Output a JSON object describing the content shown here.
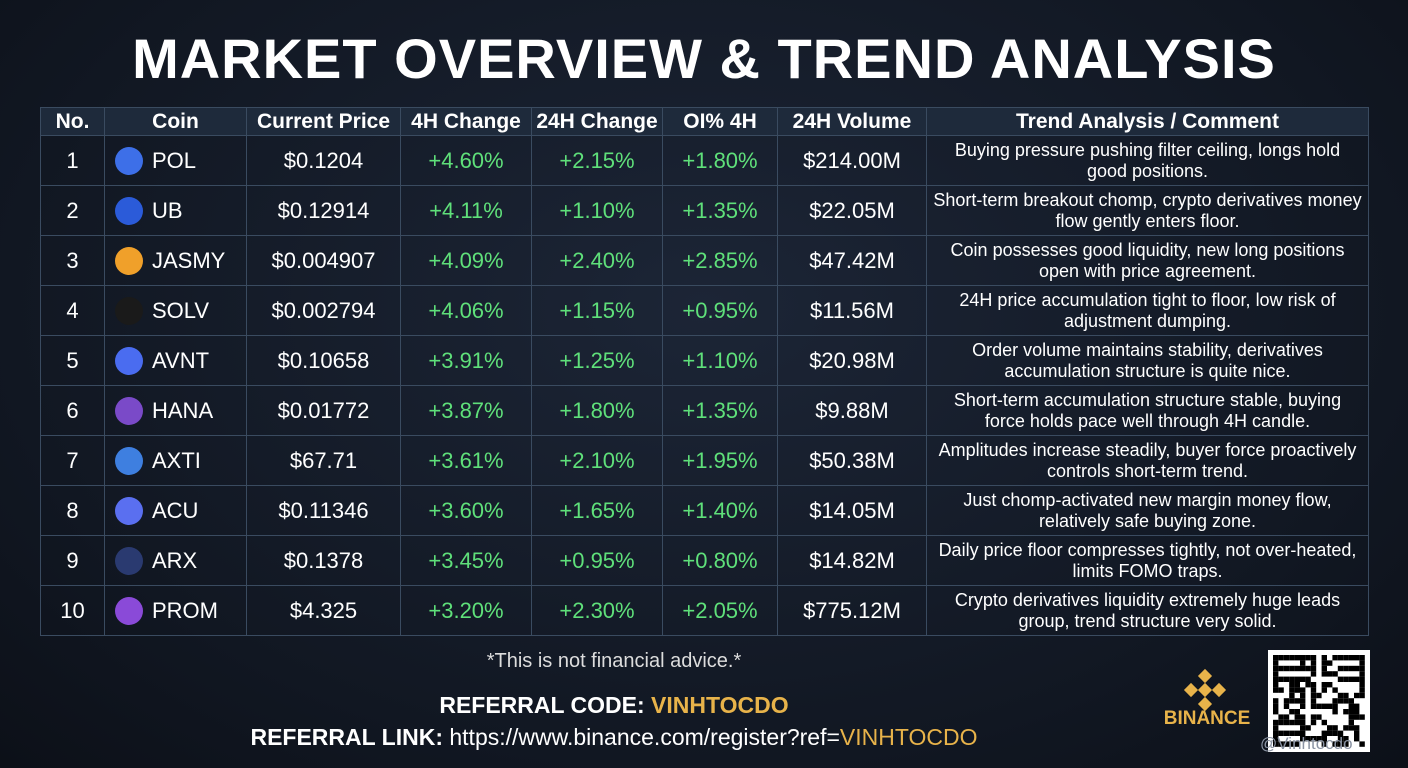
{
  "header": {
    "title": "MARKET OVERVIEW & TREND ANALYSIS"
  },
  "table": {
    "header": [
      "No.",
      "Coin",
      "Current Price",
      "4H Change",
      "24H Change",
      "OI% 4H",
      "24H Volume",
      "Trend Analysis / Comment"
    ],
    "rows": [
      [
        "1",
        "POL",
        "$0.1204",
        "+4.60%",
        "+2.15%",
        "+1.80%",
        "$214.00M",
        "Buying pressure pushing filter ceiling, longs hold good positions."
      ],
      [
        "2",
        "UB",
        "$0.12914",
        "+4.11%",
        "+1.10%",
        "+1.35%",
        "$22.05M",
        "Short-term breakout chomp, crypto derivatives money flow gently enters floor."
      ],
      [
        "3",
        "JASMY",
        "$0.004907",
        "+4.09%",
        "+2.40%",
        "+2.85%",
        "$47.42M",
        "Coin possesses good liquidity, new long positions open with price agreement."
      ],
      [
        "4",
        "SOLV",
        "$0.002794",
        "+4.06%",
        "+1.15%",
        "+0.95%",
        "$11.56M",
        "24H price accumulation tight to floor, low risk of adjustment dumping."
      ],
      [
        "5",
        "AVNT",
        "$0.10658",
        "+3.91%",
        "+1.25%",
        "+1.10%",
        "$20.98M",
        "Order volume maintains stability, derivatives accumulation structure is quite nice."
      ],
      [
        "6",
        "HANA",
        "$0.01772",
        "+3.87%",
        "+1.80%",
        "+1.35%",
        "$9.88M",
        "Short-term accumulation structure stable, buying force holds pace well through 4H candle."
      ],
      [
        "7",
        "AXTI",
        "$67.71",
        "+3.61%",
        "+2.10%",
        "+1.95%",
        "$50.38M",
        "Amplitudes increase steadily, buyer force proactively controls short-term trend."
      ],
      [
        "8",
        "ACU",
        "$0.11346",
        "+3.60%",
        "+1.65%",
        "+1.40%",
        "$14.05M",
        "Just chomp-activated new margin money flow, relatively safe buying zone."
      ],
      [
        "9",
        "ARX",
        "$0.1378",
        "+3.45%",
        "+0.95%",
        "+0.80%",
        "$14.82M",
        "Daily price floor compresses tightly, not over-heated, limits FOMO traps."
      ],
      [
        "10",
        "PROM",
        "$4.325",
        "+3.20%",
        "+2.30%",
        "+2.05%",
        "$775.12M",
        "Crypto derivatives liquidity extremely huge leads group, trend structure very solid."
      ]
    ]
  },
  "footer": {
    "disclaimer": "*This is not financial advice.*",
    "code_label": "REFERRAL CODE:",
    "code": "VINHTOCDO",
    "link_label": "REFERRAL LINK:",
    "link": "https://www.binance.com/register?ref=",
    "link_code": "VINHTOCDO",
    "brand": "BINANCE",
    "watermark": "@Vinhtocdo"
  }
}
